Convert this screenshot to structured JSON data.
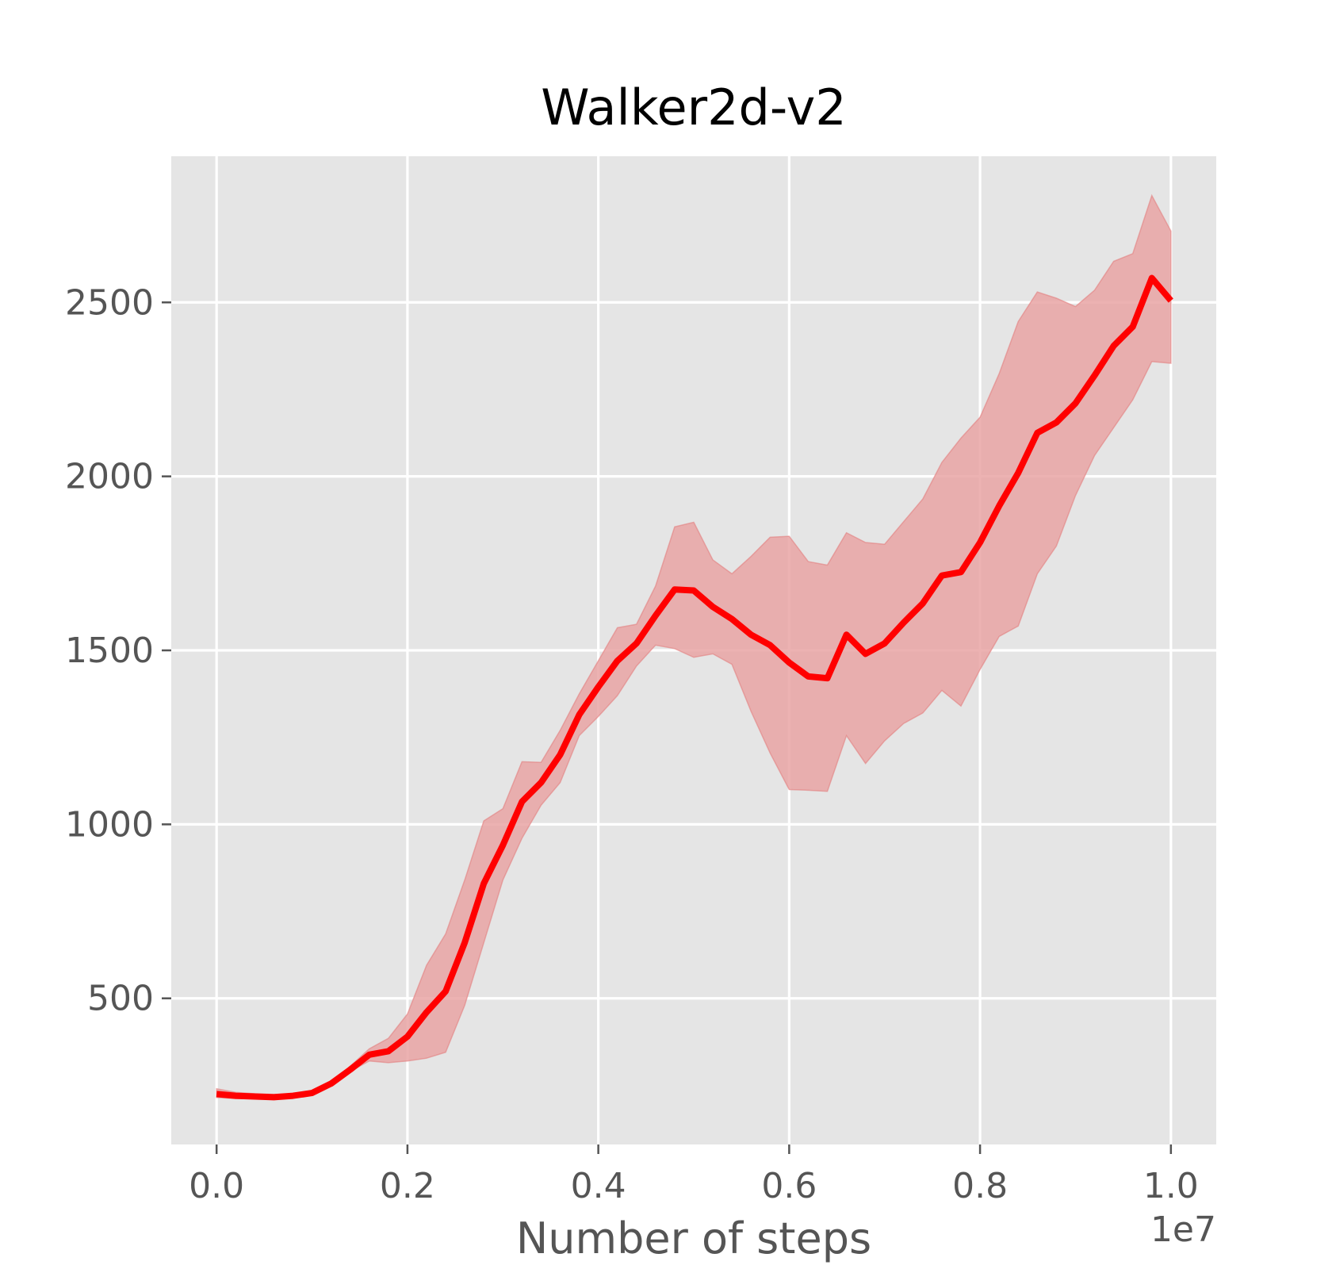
{
  "chart_data": {
    "type": "line",
    "title": "Walker2d-v2",
    "xlabel": "Number of steps",
    "ylabel": "",
    "x_offset_label": "1e7",
    "x_scale_factor": 10000000,
    "xlim": [
      -0.0475,
      1.0475
    ],
    "ylim": [
      80,
      2920
    ],
    "x_ticks": [
      0.0,
      0.2,
      0.4,
      0.6,
      0.8,
      1.0
    ],
    "x_tick_labels": [
      "0.0",
      "0.2",
      "0.4",
      "0.6",
      "0.8",
      "1.0"
    ],
    "y_ticks": [
      500,
      1000,
      1500,
      2000,
      2500
    ],
    "y_tick_labels": [
      "500",
      "1000",
      "1500",
      "2000",
      "2500"
    ],
    "grid": true,
    "style": "ggplot",
    "colors": {
      "background": "#e5e5e5",
      "grid": "#ffffff",
      "line": "#ff0000",
      "band": "#e8a1a1",
      "tick": "#555555"
    },
    "series": [
      {
        "x": [
          0.0,
          0.02,
          0.04,
          0.06,
          0.08,
          0.1,
          0.12,
          0.14,
          0.16,
          0.18,
          0.2,
          0.22,
          0.24,
          0.26,
          0.28,
          0.3,
          0.32,
          0.34,
          0.36,
          0.38,
          0.4,
          0.42,
          0.44,
          0.46,
          0.48,
          0.5,
          0.52,
          0.54,
          0.56,
          0.58,
          0.6,
          0.62,
          0.64,
          0.66,
          0.68,
          0.7,
          0.72,
          0.74,
          0.76,
          0.78,
          0.8,
          0.82,
          0.84,
          0.86,
          0.88,
          0.9,
          0.92,
          0.94,
          0.96,
          0.98,
          1.0
        ],
        "mean": [
          225,
          220,
          218,
          216,
          220,
          228,
          255,
          295,
          338,
          348,
          390,
          460,
          520,
          660,
          830,
          940,
          1065,
          1120,
          1200,
          1315,
          1395,
          1470,
          1520,
          1600,
          1675,
          1672,
          1625,
          1590,
          1545,
          1515,
          1465,
          1425,
          1420,
          1545,
          1490,
          1520,
          1580,
          1635,
          1715,
          1725,
          1810,
          1915,
          2010,
          2125,
          2155,
          2210,
          2290,
          2375,
          2430,
          2570,
          2505
        ],
        "lower": [
          215,
          212,
          212,
          212,
          216,
          224,
          250,
          290,
          320,
          315,
          320,
          328,
          345,
          480,
          660,
          840,
          960,
          1055,
          1120,
          1255,
          1310,
          1370,
          1455,
          1515,
          1505,
          1480,
          1490,
          1460,
          1325,
          1205,
          1100,
          1098,
          1095,
          1255,
          1175,
          1240,
          1290,
          1320,
          1385,
          1340,
          1445,
          1540,
          1570,
          1720,
          1800,
          1945,
          2060,
          2140,
          2220,
          2330,
          2325
        ],
        "upper": [
          240,
          230,
          226,
          224,
          226,
          234,
          262,
          305,
          355,
          385,
          455,
          595,
          685,
          840,
          1010,
          1045,
          1180,
          1178,
          1270,
          1375,
          1470,
          1565,
          1575,
          1685,
          1855,
          1868,
          1760,
          1720,
          1770,
          1825,
          1828,
          1755,
          1745,
          1838,
          1810,
          1805,
          1870,
          1935,
          2040,
          2110,
          2170,
          2295,
          2445,
          2530,
          2512,
          2488,
          2535,
          2618,
          2640,
          2807,
          2705
        ]
      }
    ]
  }
}
